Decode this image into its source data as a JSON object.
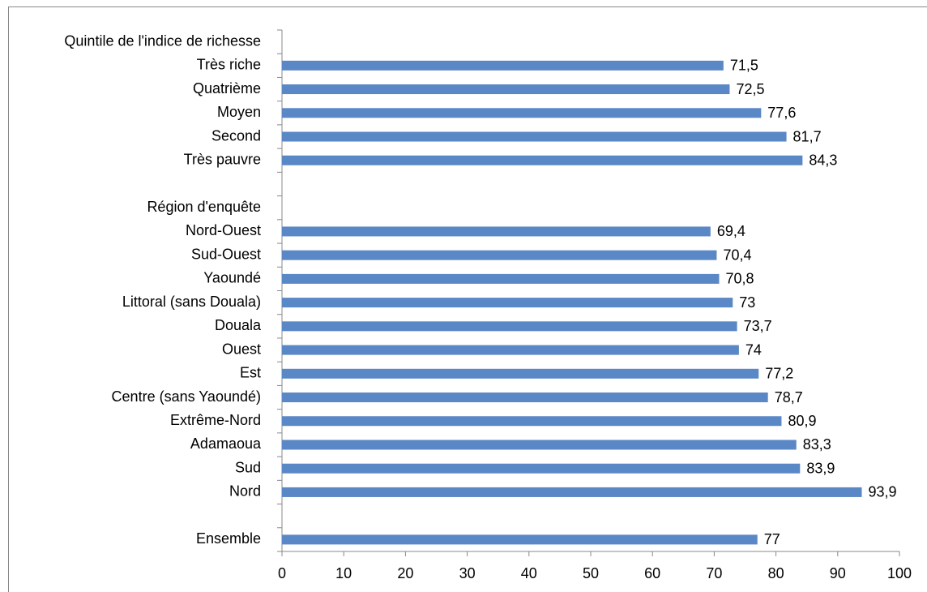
{
  "chart_data": {
    "type": "barh",
    "categories": [
      "Quintile de l'indice de richesse",
      "Très riche",
      "Quatrième",
      "Moyen",
      "Second",
      "Très pauvre",
      null,
      "Région d'enquête",
      "Nord-Ouest",
      "Sud-Ouest",
      "Yaoundé",
      "Littoral (sans Douala)",
      "Douala",
      "Ouest",
      "Est",
      "Centre (sans Yaoundé)",
      "Extrême-Nord",
      "Adamaoua",
      "Sud",
      "Nord",
      null,
      "Ensemble"
    ],
    "values": [
      null,
      71.5,
      72.5,
      77.6,
      81.7,
      84.3,
      null,
      null,
      69.4,
      70.4,
      70.8,
      73,
      73.7,
      74,
      77.2,
      78.7,
      80.9,
      83.3,
      83.9,
      93.9,
      null,
      77
    ],
    "value_labels": [
      null,
      "71,5",
      "72,5",
      "77,6",
      "81,7",
      "84,3",
      null,
      null,
      "69,4",
      "70,4",
      "70,8",
      "73",
      "73,7",
      "74",
      "77,2",
      "78,7",
      "80,9",
      "83,3",
      "83,9",
      "93,9",
      null,
      "77"
    ],
    "color": "#5a87c5",
    "xlim": [
      0,
      100
    ],
    "xticks": [
      0,
      10,
      20,
      30,
      40,
      50,
      60,
      70,
      80,
      90,
      100
    ]
  }
}
